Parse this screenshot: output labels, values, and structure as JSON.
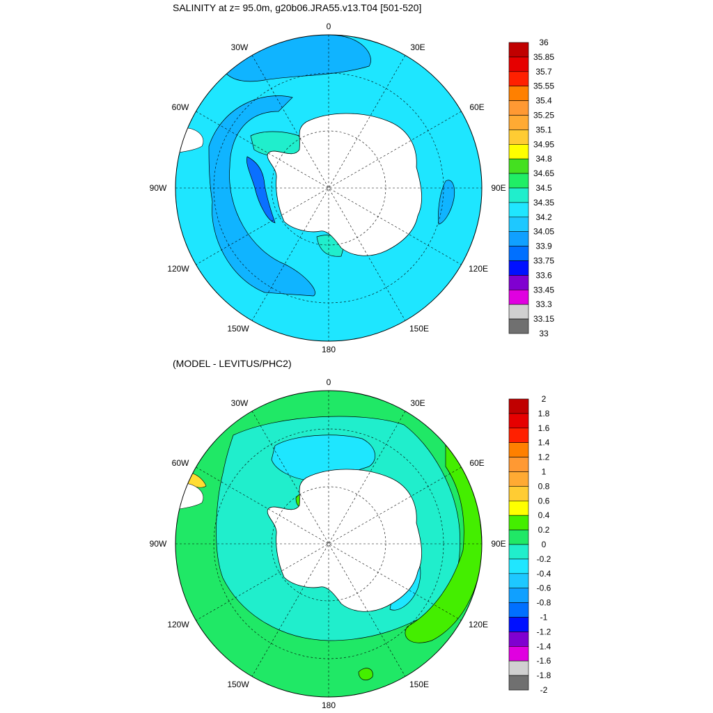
{
  "panels": [
    {
      "title": "SALINITY at z=  95.0m, g20b06.JRA55.v13.T04 [501-520]",
      "lon_labels": {
        "top": "0",
        "upper_left": "30W",
        "upper_right": "30E",
        "mid_upper_left": "60W",
        "mid_upper_right": "60E",
        "left": "90W",
        "right": "90E",
        "lower_left": "120W",
        "lower_right": "120E",
        "bottom_left": "150W",
        "bottom_right": "150E",
        "bottom": "180"
      },
      "colorbar_labels": [
        "36",
        "35.85",
        "35.7",
        "35.55",
        "35.4",
        "35.25",
        "35.1",
        "34.95",
        "34.8",
        "34.65",
        "34.5",
        "34.35",
        "34.2",
        "34.05",
        "33.9",
        "33.75",
        "33.6",
        "33.45",
        "33.3",
        "33.15",
        "33"
      ],
      "colorbar_colors": [
        "#c00000",
        "#e60000",
        "#ff2000",
        "#ff8000",
        "#ff9933",
        "#ffaa33",
        "#ffcc33",
        "#ffff00",
        "#44e020",
        "#20ee66",
        "#20eecc",
        "#20e6ff",
        "#1ec8ff",
        "#10a0ff",
        "#0070ff",
        "#0010ff",
        "#8000d0",
        "#e000e0",
        "#d0d0d0",
        "#707070"
      ],
      "ocean_color": "#1ee6ff",
      "zone_colors": {
        "outer": "#1ee6ff",
        "band": "#10b4ff",
        "shelf": "#20eecc",
        "deep": "#0a70ff"
      }
    },
    {
      "title": "(MODEL - LEVITUS/PHC2)",
      "lon_labels": {
        "top": "0",
        "upper_left": "30W",
        "upper_right": "30E",
        "mid_upper_left": "60W",
        "mid_upper_right": "60E",
        "left": "90W",
        "right": "90E",
        "lower_left": "120W",
        "lower_right": "120E",
        "bottom_left": "150W",
        "bottom_right": "150E",
        "bottom": "180"
      },
      "colorbar_labels": [
        "2",
        "1.8",
        "1.6",
        "1.4",
        "1.2",
        "1",
        "0.8",
        "0.6",
        "0.4",
        "0.2",
        "0",
        "-0.2",
        "-0.4",
        "-0.6",
        "-0.8",
        "-1",
        "-1.2",
        "-1.4",
        "-1.6",
        "-1.8",
        "-2"
      ],
      "colorbar_colors": [
        "#c00000",
        "#e60000",
        "#ff2000",
        "#ff8000",
        "#ff9933",
        "#ffaa33",
        "#ffcc33",
        "#ffff00",
        "#44ee00",
        "#20e866",
        "#20eecc",
        "#20e6ff",
        "#1ec8ff",
        "#10a0ff",
        "#0070ff",
        "#0010ff",
        "#8000d0",
        "#e000e0",
        "#d0d0d0",
        "#707070"
      ],
      "ocean_color": "#20e866",
      "zone_colors": {
        "outer": "#20e866",
        "band": "#20eecc",
        "shelf": "#1ee6ff",
        "warm": "#44ee00"
      }
    }
  ]
}
